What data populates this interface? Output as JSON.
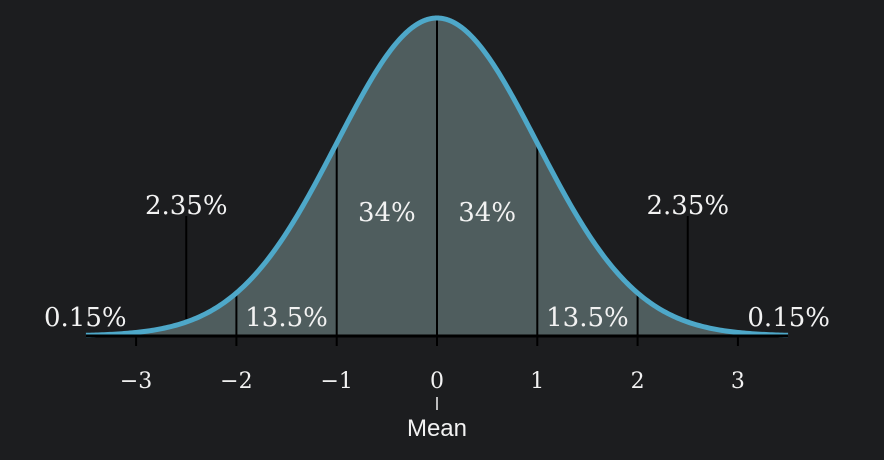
{
  "chart_data": {
    "type": "area",
    "x_range": [
      -3.5,
      3.5
    ],
    "ylim": [
      0,
      1
    ],
    "curve": "standard-normal-density",
    "ticks": [
      "−3",
      "−2",
      "−1",
      "0",
      "1",
      "2",
      "3"
    ],
    "tick_values": [
      -3,
      -2,
      -1,
      0,
      1,
      2,
      3
    ],
    "mean_label": "Mean",
    "region_boundaries": [
      -2,
      -1,
      0,
      1,
      2
    ],
    "region_labels": [
      {
        "x": -3.0,
        "text": "0.15%"
      },
      {
        "x": -2.5,
        "text": "2.35%"
      },
      {
        "x": -1.5,
        "text": "13.5%"
      },
      {
        "x": -0.5,
        "text": "34%"
      },
      {
        "x": 0.5,
        "text": "34%"
      },
      {
        "x": 1.5,
        "text": "13.5%"
      },
      {
        "x": 2.5,
        "text": "2.35%"
      },
      {
        "x": 3.0,
        "text": "0.15%"
      }
    ],
    "colors": {
      "background": "#1c1d1f",
      "curve": "#4ea8c9",
      "fill": "#4f5d5e",
      "lines": "#000000",
      "text": "#f2f2f2"
    }
  }
}
